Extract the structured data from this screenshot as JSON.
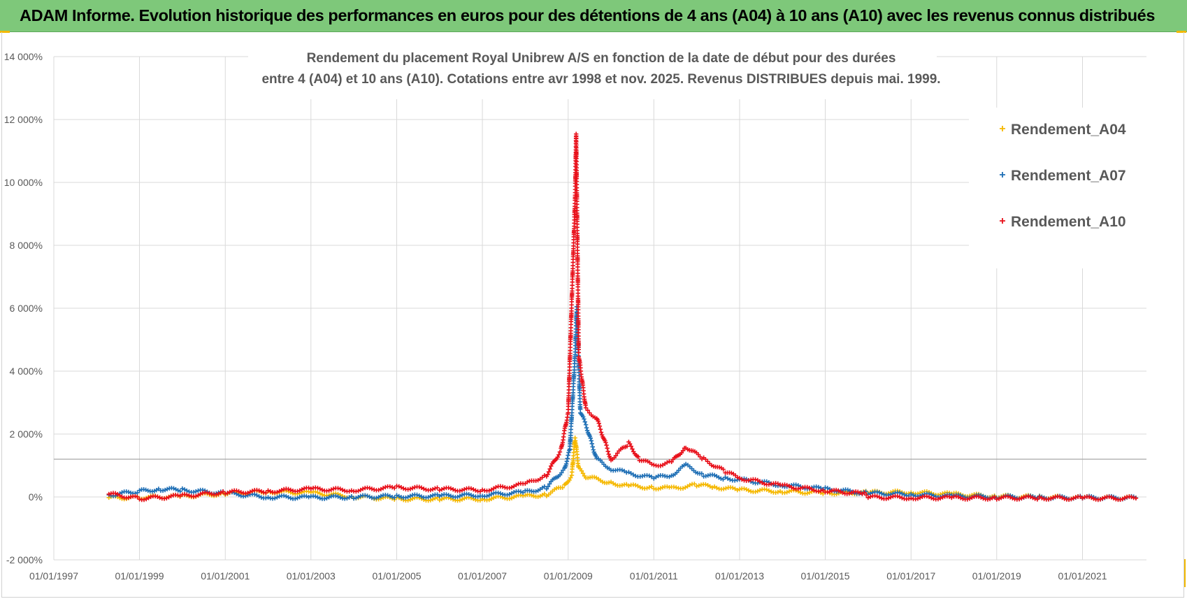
{
  "banner": {
    "title": "ADAM Informe. Evolution historique des performances en euros pour des détentions de 4 ans (A04) à 10 ans (A10) avec les revenus connus distribués"
  },
  "chart_data": {
    "type": "scatter",
    "title": [
      "Rendement du placement Royal Unibrew A/S en fonction de la date de début pour des durées",
      "entre 4 (A04) et 10 ans (A10). Cotations entre avr 1998 et nov. 2025. Revenus DISTRIBUES depuis mai. 1999."
    ],
    "xlabel": "",
    "ylabel": "",
    "x_ticks": [
      "01/01/1997",
      "01/01/1999",
      "01/01/2001",
      "01/01/2003",
      "01/01/2005",
      "01/01/2007",
      "01/01/2009",
      "01/01/2011",
      "01/01/2013",
      "01/01/2015",
      "01/01/2017",
      "01/01/2019",
      "01/01/2021"
    ],
    "xlim": [
      "1997-01-01",
      "2022-06-30"
    ],
    "y_ticks": [
      "-2 000%",
      "0%",
      "2 000%",
      "4 000%",
      "6 000%",
      "8 000%",
      "10 000%",
      "12 000%",
      "14 000%"
    ],
    "ylim": [
      -2000,
      14000
    ],
    "reference_line_y": 1200,
    "grid": true,
    "legend_position": "top-right",
    "marker": "+",
    "series": [
      {
        "name": "Rendement_A04",
        "color": "#f5b800",
        "points": [
          [
            "1998-04-15",
            -20
          ],
          [
            "1999-01-01",
            -20
          ],
          [
            "2000-01-01",
            20
          ],
          [
            "2001-01-01",
            110
          ],
          [
            "2002-01-01",
            170
          ],
          [
            "2003-01-01",
            130
          ],
          [
            "2004-01-01",
            10
          ],
          [
            "2005-01-01",
            -60
          ],
          [
            "2006-01-01",
            -70
          ],
          [
            "2007-01-01",
            -60
          ],
          [
            "2008-01-01",
            20
          ],
          [
            "2008-07-01",
            80
          ],
          [
            "2008-12-01",
            350
          ],
          [
            "2009-02-01",
            700
          ],
          [
            "2009-03-01",
            1900
          ],
          [
            "2009-04-01",
            900
          ],
          [
            "2009-06-01",
            650
          ],
          [
            "2010-01-01",
            450
          ],
          [
            "2010-06-01",
            350
          ],
          [
            "2011-01-01",
            300
          ],
          [
            "2011-06-01",
            270
          ],
          [
            "2012-01-01",
            380
          ],
          [
            "2012-06-01",
            320
          ],
          [
            "2013-01-01",
            220
          ],
          [
            "2014-01-01",
            180
          ],
          [
            "2015-01-01",
            130
          ],
          [
            "2016-01-01",
            140
          ],
          [
            "2017-01-01",
            150
          ],
          [
            "2018-01-01",
            80
          ],
          [
            "2019-01-01",
            20
          ],
          [
            "2020-01-01",
            0
          ],
          [
            "2021-01-01",
            -30
          ],
          [
            "2022-04-01",
            -30
          ]
        ]
      },
      {
        "name": "Rendement_A07",
        "color": "#1f6fb5",
        "points": [
          [
            "1998-04-15",
            60
          ],
          [
            "1999-01-01",
            180
          ],
          [
            "1999-07-01",
            250
          ],
          [
            "2000-01-01",
            220
          ],
          [
            "2001-01-01",
            120
          ],
          [
            "2002-01-01",
            0
          ],
          [
            "2003-01-01",
            -20
          ],
          [
            "2004-01-01",
            0
          ],
          [
            "2005-01-01",
            20
          ],
          [
            "2006-01-01",
            30
          ],
          [
            "2007-01-01",
            60
          ],
          [
            "2008-01-01",
            150
          ],
          [
            "2008-07-01",
            300
          ],
          [
            "2008-12-01",
            900
          ],
          [
            "2009-01-15",
            1500
          ],
          [
            "2009-03-01",
            4500
          ],
          [
            "2009-03-15",
            6000
          ],
          [
            "2009-04-15",
            2700
          ],
          [
            "2009-06-01",
            2300
          ],
          [
            "2009-09-01",
            1200
          ],
          [
            "2010-01-01",
            900
          ],
          [
            "2010-06-01",
            750
          ],
          [
            "2011-01-01",
            600
          ],
          [
            "2011-06-01",
            700
          ],
          [
            "2011-10-01",
            1000
          ],
          [
            "2012-03-01",
            700
          ],
          [
            "2012-09-01",
            600
          ],
          [
            "2013-01-01",
            550
          ],
          [
            "2014-01-01",
            380
          ],
          [
            "2015-01-01",
            250
          ],
          [
            "2016-01-01",
            120
          ],
          [
            "2017-01-01",
            80
          ],
          [
            "2018-01-01",
            20
          ],
          [
            "2019-01-01",
            10
          ],
          [
            "2020-01-01",
            -20
          ],
          [
            "2021-01-01",
            -20
          ],
          [
            "2022-04-01",
            -30
          ]
        ]
      },
      {
        "name": "Rendement_A10",
        "color": "#e8101a",
        "points": [
          [
            "1998-04-15",
            100
          ],
          [
            "1999-01-01",
            -50
          ],
          [
            "2000-01-01",
            30
          ],
          [
            "2001-01-01",
            150
          ],
          [
            "2002-01-01",
            180
          ],
          [
            "2003-01-01",
            250
          ],
          [
            "2004-01-01",
            220
          ],
          [
            "2005-01-01",
            300
          ],
          [
            "2006-01-01",
            250
          ],
          [
            "2007-01-01",
            220
          ],
          [
            "2008-01-01",
            400
          ],
          [
            "2008-07-01",
            700
          ],
          [
            "2008-11-01",
            1500
          ],
          [
            "2009-01-01",
            2700
          ],
          [
            "2009-03-01",
            9500
          ],
          [
            "2009-03-10",
            11500
          ],
          [
            "2009-04-01",
            4500
          ],
          [
            "2009-06-01",
            2800
          ],
          [
            "2009-09-01",
            2500
          ],
          [
            "2010-01-01",
            1200
          ],
          [
            "2010-06-01",
            1700
          ],
          [
            "2010-09-01",
            1200
          ],
          [
            "2011-01-01",
            1000
          ],
          [
            "2011-06-01",
            1100
          ],
          [
            "2011-10-01",
            1600
          ],
          [
            "2012-03-01",
            1200
          ],
          [
            "2012-09-01",
            800
          ],
          [
            "2013-01-01",
            600
          ],
          [
            "2014-01-01",
            350
          ],
          [
            "2015-01-01",
            200
          ],
          [
            "2015-12-01",
            100
          ],
          [
            "2016-01-01",
            -10
          ],
          [
            "2017-01-01",
            -20
          ],
          [
            "2018-01-01",
            -30
          ],
          [
            "2019-01-01",
            -30
          ],
          [
            "2020-01-01",
            -30
          ],
          [
            "2021-01-01",
            -40
          ],
          [
            "2022-04-01",
            -40
          ]
        ]
      }
    ]
  }
}
